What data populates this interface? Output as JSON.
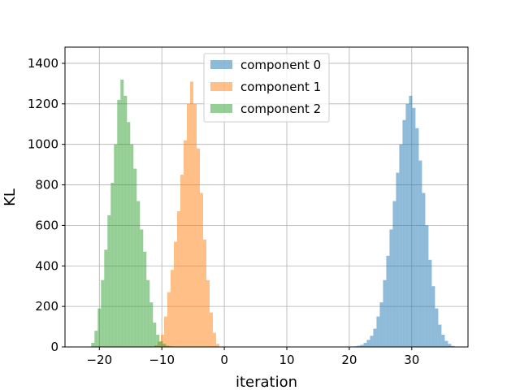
{
  "chart_data": {
    "type": "histogram",
    "title": "",
    "xlabel": "iteration",
    "ylabel": "KL",
    "xlim": [
      -25.5,
      39
    ],
    "ylim": [
      0,
      1480
    ],
    "xticks": [
      -20,
      -10,
      0,
      10,
      20,
      30
    ],
    "yticks": [
      0,
      200,
      400,
      600,
      800,
      1000,
      1200,
      1400
    ],
    "grid": true,
    "legend_position": "upper-center",
    "series": [
      {
        "name": "component 0",
        "color": "#1f77b4",
        "alpha": 0.5,
        "bin_width": 0.52,
        "bins_left": [
          20.2,
          20.72,
          21.24,
          21.76,
          22.28,
          22.8,
          23.32,
          23.84,
          24.36,
          24.88,
          25.4,
          25.92,
          26.44,
          26.96,
          27.48,
          28.0,
          28.52,
          29.04,
          29.56,
          30.08,
          30.6,
          31.12,
          31.64,
          32.16,
          32.68,
          33.2,
          33.72,
          34.24,
          34.76,
          35.28,
          35.8,
          36.32
        ],
        "counts": [
          2,
          3,
          6,
          10,
          20,
          35,
          55,
          90,
          150,
          220,
          330,
          450,
          580,
          720,
          860,
          1000,
          1120,
          1200,
          1240,
          1180,
          1080,
          920,
          760,
          600,
          430,
          300,
          190,
          110,
          60,
          30,
          15,
          5
        ]
      },
      {
        "name": "component 1",
        "color": "#ff7f0e",
        "alpha": 0.5,
        "bin_width": 0.52,
        "bins_left": [
          -11.2,
          -10.68,
          -10.16,
          -9.64,
          -9.12,
          -8.6,
          -8.08,
          -7.56,
          -7.04,
          -6.52,
          -6.0,
          -5.48,
          -4.96,
          -4.44,
          -3.92,
          -3.4,
          -2.88,
          -2.36,
          -1.84,
          -1.32
        ],
        "counts": [
          8,
          25,
          60,
          150,
          270,
          380,
          520,
          670,
          850,
          1020,
          1200,
          1310,
          1200,
          980,
          760,
          530,
          330,
          170,
          70,
          15
        ]
      },
      {
        "name": "component 2",
        "color": "#2ca02c",
        "alpha": 0.5,
        "bin_width": 0.52,
        "bins_left": [
          -21.3,
          -20.78,
          -20.26,
          -19.74,
          -19.22,
          -18.7,
          -18.18,
          -17.66,
          -17.14,
          -16.62,
          -16.1,
          -15.58,
          -15.06,
          -14.54,
          -14.02,
          -13.5,
          -12.98,
          -12.46,
          -11.94,
          -11.42,
          -10.9,
          -10.38,
          -9.86,
          -9.34,
          -8.82,
          -8.3
        ],
        "counts": [
          20,
          80,
          190,
          330,
          480,
          650,
          810,
          1000,
          1220,
          1320,
          1240,
          1110,
          1000,
          880,
          720,
          580,
          470,
          330,
          220,
          120,
          60,
          28,
          15,
          6,
          3,
          1
        ]
      }
    ]
  }
}
